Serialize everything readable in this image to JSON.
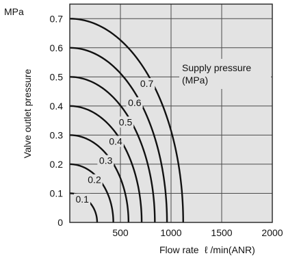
{
  "chart_data": {
    "type": "line",
    "ylabel": "Valve outlet pressure",
    "yunit": "MPa",
    "xlabel": "Flow rate",
    "xunit": "ℓ /min(ANR)",
    "xlim": [
      0,
      2000
    ],
    "ylim": [
      0,
      0.75
    ],
    "xticks": [
      "500",
      "1000",
      "1500",
      "2000"
    ],
    "yticks": [
      "0",
      "0.1",
      "0.2",
      "0.3",
      "0.4",
      "0.5",
      "0.6",
      "0.7"
    ],
    "grid": true,
    "background": "#e3e3e3",
    "annotation": [
      "Supply pressure",
      "(MPa)"
    ],
    "series": [
      {
        "name": "0.1",
        "max_flow": 270,
        "max_pressure": 0.1
      },
      {
        "name": "0.2",
        "max_flow": 430,
        "max_pressure": 0.2
      },
      {
        "name": "0.3",
        "max_flow": 580,
        "max_pressure": 0.3
      },
      {
        "name": "0.4",
        "max_flow": 710,
        "max_pressure": 0.4
      },
      {
        "name": "0.5",
        "max_flow": 840,
        "max_pressure": 0.5
      },
      {
        "name": "0.6",
        "max_flow": 960,
        "max_pressure": 0.6
      },
      {
        "name": "0.7",
        "max_flow": 1120,
        "max_pressure": 0.7
      }
    ]
  }
}
